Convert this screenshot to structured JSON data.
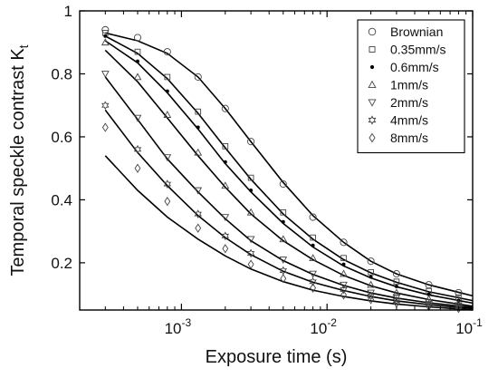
{
  "chart_data": {
    "type": "scatter",
    "xlabel": "Exposure time (s)",
    "ylabel": "Temporal speckle contrast K",
    "ylabel_subscript": "t",
    "x_scale": "log",
    "xlim": [
      0.0002,
      0.1
    ],
    "ylim": [
      0.05,
      1.0
    ],
    "x_ticks": [
      {
        "value": 0.001,
        "base": "10",
        "exponent": "-3"
      },
      {
        "value": 0.01,
        "base": "10",
        "exponent": "-2"
      },
      {
        "value": 0.1,
        "base": "10",
        "exponent": "-1"
      }
    ],
    "y_ticks": [
      {
        "value": 0.2,
        "label": "0.2"
      },
      {
        "value": 0.4,
        "label": "0.4"
      },
      {
        "value": 0.6,
        "label": "0.6"
      },
      {
        "value": 0.8,
        "label": "0.8"
      },
      {
        "value": 1.0,
        "label": "1"
      }
    ],
    "grid": false,
    "legend_position": "top-right",
    "fit_lines": "solid black model fit for each series",
    "series": [
      {
        "name": "Brownian",
        "marker": "circle",
        "x": [
          0.0003,
          0.0005,
          0.0008,
          0.0013,
          0.002,
          0.003,
          0.005,
          0.008,
          0.013,
          0.02,
          0.03,
          0.05,
          0.08
        ],
        "y": [
          0.94,
          0.915,
          0.87,
          0.79,
          0.69,
          0.585,
          0.45,
          0.345,
          0.265,
          0.205,
          0.165,
          0.13,
          0.105
        ]
      },
      {
        "name": "0.35mm/s",
        "marker": "square",
        "x": [
          0.0003,
          0.0005,
          0.0008,
          0.0013,
          0.002,
          0.003,
          0.005,
          0.008,
          0.013,
          0.02,
          0.03,
          0.05,
          0.08
        ],
        "y": [
          0.93,
          0.87,
          0.79,
          0.68,
          0.57,
          0.47,
          0.36,
          0.28,
          0.215,
          0.17,
          0.14,
          0.11,
          0.09
        ]
      },
      {
        "name": "0.6mm/s",
        "marker": "dot",
        "x": [
          0.0003,
          0.0005,
          0.0008,
          0.0013,
          0.002,
          0.003,
          0.005,
          0.008,
          0.013,
          0.02,
          0.03,
          0.05,
          0.08
        ],
        "y": [
          0.92,
          0.84,
          0.745,
          0.63,
          0.52,
          0.43,
          0.33,
          0.255,
          0.195,
          0.155,
          0.125,
          0.1,
          0.08
        ]
      },
      {
        "name": "1mm/s",
        "marker": "triangle-up",
        "x": [
          0.0003,
          0.0005,
          0.0008,
          0.0013,
          0.002,
          0.003,
          0.005,
          0.008,
          0.013,
          0.02,
          0.03,
          0.05,
          0.08
        ],
        "y": [
          0.9,
          0.79,
          0.67,
          0.55,
          0.445,
          0.36,
          0.275,
          0.215,
          0.165,
          0.13,
          0.105,
          0.085,
          0.07
        ]
      },
      {
        "name": "2mm/s",
        "marker": "triangle-down",
        "x": [
          0.0003,
          0.0005,
          0.0008,
          0.0013,
          0.002,
          0.003,
          0.005,
          0.008,
          0.013,
          0.02,
          0.03,
          0.05,
          0.08
        ],
        "y": [
          0.8,
          0.66,
          0.535,
          0.43,
          0.345,
          0.275,
          0.21,
          0.165,
          0.13,
          0.105,
          0.09,
          0.075,
          0.065
        ]
      },
      {
        "name": "4mm/s",
        "marker": "hexagram",
        "x": [
          0.0003,
          0.0005,
          0.0008,
          0.0013,
          0.002,
          0.003,
          0.005,
          0.008,
          0.013,
          0.02,
          0.03,
          0.05,
          0.08
        ],
        "y": [
          0.7,
          0.56,
          0.45,
          0.355,
          0.285,
          0.23,
          0.175,
          0.14,
          0.115,
          0.095,
          0.08,
          0.068,
          0.06
        ]
      },
      {
        "name": "8mm/s",
        "marker": "diamond",
        "x": [
          0.0003,
          0.0005,
          0.0008,
          0.0013,
          0.002,
          0.003,
          0.005,
          0.008,
          0.013,
          0.02,
          0.03,
          0.05,
          0.08
        ],
        "y": [
          0.63,
          0.5,
          0.395,
          0.31,
          0.245,
          0.195,
          0.15,
          0.12,
          0.098,
          0.083,
          0.072,
          0.062,
          0.055
        ]
      }
    ],
    "fits": [
      {
        "x": [
          0.0003,
          0.0005,
          0.0008,
          0.0013,
          0.002,
          0.003,
          0.005,
          0.008,
          0.013,
          0.02,
          0.03,
          0.05,
          0.1
        ],
        "y": [
          0.93,
          0.905,
          0.865,
          0.79,
          0.69,
          0.585,
          0.455,
          0.35,
          0.265,
          0.205,
          0.165,
          0.13,
          0.095
        ]
      },
      {
        "x": [
          0.0003,
          0.0005,
          0.0008,
          0.0013,
          0.002,
          0.003,
          0.005,
          0.008,
          0.013,
          0.02,
          0.03,
          0.05,
          0.1
        ],
        "y": [
          0.92,
          0.865,
          0.785,
          0.675,
          0.565,
          0.465,
          0.355,
          0.275,
          0.21,
          0.168,
          0.138,
          0.108,
          0.08
        ]
      },
      {
        "x": [
          0.0003,
          0.0005,
          0.0008,
          0.0013,
          0.002,
          0.003,
          0.005,
          0.008,
          0.013,
          0.02,
          0.03,
          0.05,
          0.1
        ],
        "y": [
          0.905,
          0.835,
          0.74,
          0.625,
          0.515,
          0.425,
          0.325,
          0.25,
          0.19,
          0.152,
          0.124,
          0.098,
          0.072
        ]
      },
      {
        "x": [
          0.0003,
          0.0005,
          0.0008,
          0.0013,
          0.002,
          0.003,
          0.005,
          0.008,
          0.013,
          0.02,
          0.03,
          0.05,
          0.1
        ],
        "y": [
          0.875,
          0.775,
          0.66,
          0.54,
          0.44,
          0.355,
          0.27,
          0.21,
          0.16,
          0.127,
          0.104,
          0.083,
          0.062
        ]
      },
      {
        "x": [
          0.0003,
          0.0005,
          0.0008,
          0.0013,
          0.002,
          0.003,
          0.005,
          0.008,
          0.013,
          0.02,
          0.03,
          0.05,
          0.1
        ],
        "y": [
          0.79,
          0.655,
          0.53,
          0.425,
          0.34,
          0.27,
          0.207,
          0.163,
          0.128,
          0.104,
          0.088,
          0.073,
          0.058
        ]
      },
      {
        "x": [
          0.0003,
          0.0005,
          0.0008,
          0.0013,
          0.002,
          0.003,
          0.005,
          0.008,
          0.013,
          0.02,
          0.03,
          0.05,
          0.1
        ],
        "y": [
          0.685,
          0.55,
          0.445,
          0.35,
          0.28,
          0.226,
          0.173,
          0.138,
          0.112,
          0.093,
          0.079,
          0.067,
          0.054
        ]
      },
      {
        "x": [
          0.0003,
          0.0005,
          0.0008,
          0.0013,
          0.002,
          0.003,
          0.005,
          0.008,
          0.013,
          0.02,
          0.03,
          0.05,
          0.1
        ],
        "y": [
          0.54,
          0.43,
          0.345,
          0.275,
          0.222,
          0.18,
          0.14,
          0.113,
          0.093,
          0.079,
          0.069,
          0.06,
          0.05
        ]
      }
    ]
  }
}
